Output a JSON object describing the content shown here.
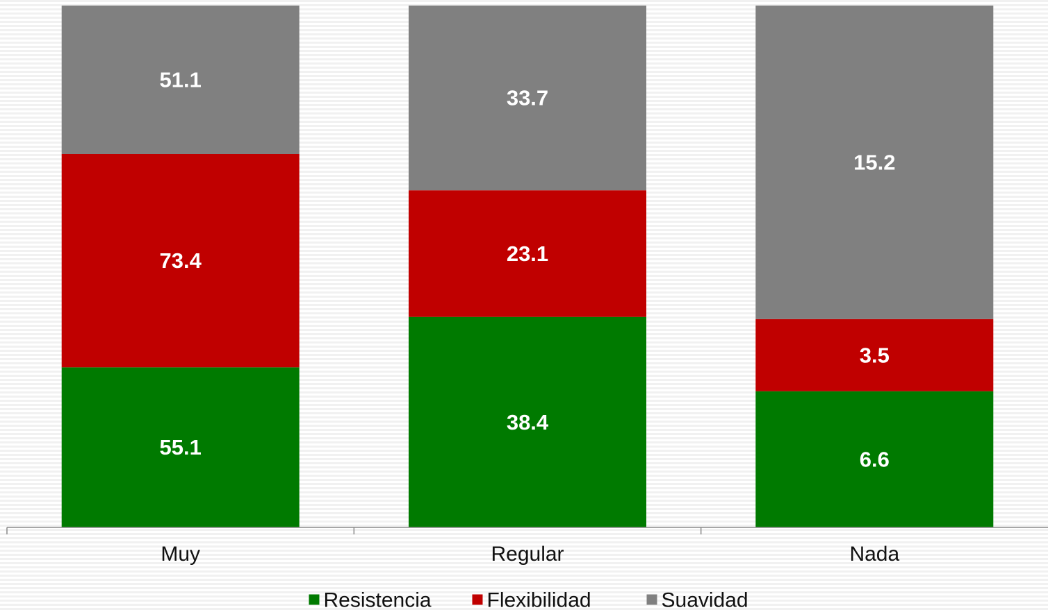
{
  "chart_data": {
    "type": "bar",
    "stacked": true,
    "normalized": true,
    "categories": [
      "Muy",
      "Regular",
      "Nada"
    ],
    "series": [
      {
        "name": "Resistencia",
        "color": "#007A00",
        "values": [
          55.1,
          38.4,
          6.6
        ]
      },
      {
        "name": "Flexibilidad",
        "color": "#C00000",
        "values": [
          73.4,
          23.1,
          3.5
        ]
      },
      {
        "name": "Suavidad",
        "color": "#808080",
        "values": [
          51.1,
          33.7,
          15.2
        ]
      }
    ],
    "title": "",
    "xlabel": "",
    "ylabel": "",
    "grid": false,
    "legend_position": "bottom"
  }
}
